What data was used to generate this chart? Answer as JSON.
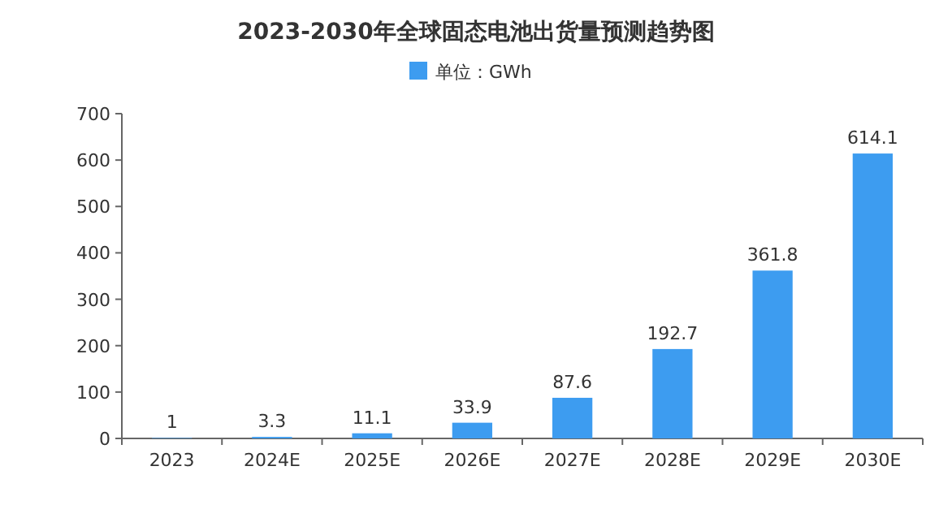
{
  "chart_data": {
    "type": "bar",
    "title": "2023-2030年全球固态电池出货量预测趋势图",
    "categories": [
      "2023",
      "2024E",
      "2025E",
      "2026E",
      "2027E",
      "2028E",
      "2029E",
      "2030E"
    ],
    "series": [
      {
        "name": "单位：GWh",
        "color": "#3d9cf0",
        "values": [
          1,
          3.3,
          11.1,
          33.9,
          87.6,
          192.7,
          361.8,
          614.1
        ]
      }
    ],
    "ylim": [
      0,
      700
    ],
    "yticks": [
      0,
      100,
      200,
      300,
      400,
      500,
      600,
      700
    ],
    "data_labels": true,
    "legend": "top",
    "grid": false
  }
}
